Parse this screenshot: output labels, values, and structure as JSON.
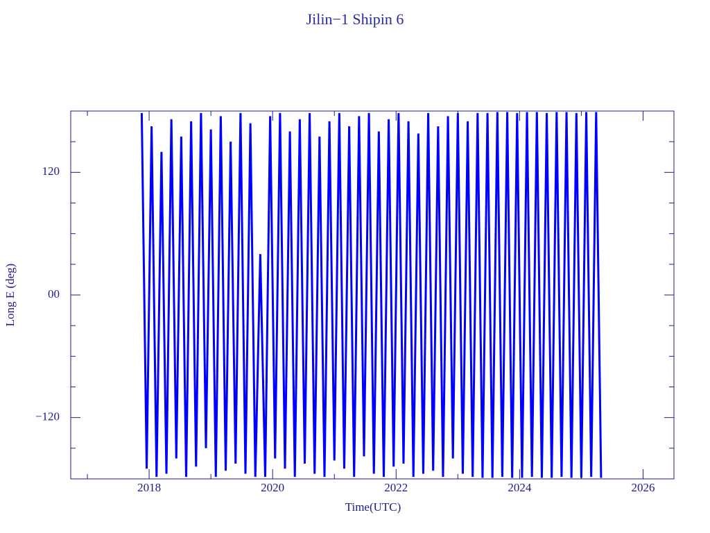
{
  "chart_data": {
    "type": "line",
    "title": "Jilin−1 Shipin 6",
    "x_label": "Time(UTC)",
    "y_label": "Long E (deg)",
    "xlim": [
      2016.73,
      2026.5
    ],
    "ylim": [
      -180,
      180
    ],
    "xticks": [
      2018,
      2020,
      2022,
      2024,
      2026
    ],
    "xminorticks": [
      2017,
      2019,
      2021,
      2023,
      2025
    ],
    "yticks": [
      {
        "value": -120,
        "label": "−120"
      },
      {
        "value": 0,
        "label": "00"
      },
      120
    ],
    "yminorticks": [
      -150,
      -90,
      -60,
      -30,
      30,
      60,
      90,
      150
    ],
    "series": [
      {
        "color": "#0000ff",
        "x": [
          2017.88,
          2017.96,
          2018.04,
          2018.12,
          2018.2,
          2018.28,
          2018.36,
          2018.44,
          2018.52,
          2018.6,
          2018.68,
          2018.76,
          2018.84,
          2018.92,
          2019.0,
          2019.08,
          2019.16,
          2019.24,
          2019.32,
          2019.4,
          2019.48,
          2019.56,
          2019.64,
          2019.72,
          2019.8,
          2019.88,
          2019.96,
          2020.04,
          2020.12,
          2020.2,
          2020.28,
          2020.36,
          2020.44,
          2020.52,
          2020.6,
          2020.68,
          2020.76,
          2020.84,
          2020.92,
          2021.0,
          2021.08,
          2021.16,
          2021.24,
          2021.32,
          2021.4,
          2021.48,
          2021.56,
          2021.64,
          2021.72,
          2021.8,
          2021.88,
          2021.96,
          2022.04,
          2022.12,
          2022.2,
          2022.28,
          2022.36,
          2022.44,
          2022.52,
          2022.6,
          2022.68,
          2022.76,
          2022.84,
          2022.92,
          2023.0,
          2023.08,
          2023.16,
          2023.24,
          2023.32,
          2023.4,
          2023.48,
          2023.56,
          2023.64,
          2023.72,
          2023.8,
          2023.88,
          2023.96,
          2024.04,
          2024.12,
          2024.2,
          2024.28,
          2024.36,
          2024.44,
          2024.52,
          2024.6,
          2024.68,
          2024.76,
          2024.84,
          2024.92,
          2025.0,
          2025.08,
          2025.16,
          2025.24,
          2025.32
        ],
        "values": [
          178,
          -170,
          165,
          -178,
          140,
          -175,
          172,
          -160,
          155,
          -178,
          170,
          -168,
          178,
          -150,
          162,
          -178,
          175,
          -172,
          150,
          -165,
          178,
          -175,
          168,
          -178,
          40,
          -178,
          175,
          -160,
          178,
          -170,
          160,
          -178,
          172,
          -165,
          178,
          -175,
          155,
          -178,
          170,
          -162,
          178,
          -170,
          165,
          -178,
          175,
          -158,
          178,
          -175,
          160,
          -178,
          172,
          -168,
          178,
          -165,
          170,
          -178,
          158,
          -175,
          178,
          -172,
          165,
          -178,
          175,
          -160,
          178,
          -175,
          170,
          -178,
          178,
          -179,
          178,
          -179,
          179,
          -178,
          179,
          -179,
          178,
          -179,
          179,
          -178,
          179,
          -179,
          178,
          -179,
          179,
          -178,
          179,
          -179,
          178,
          -179,
          179,
          -178,
          179,
          -179
        ]
      }
    ]
  }
}
